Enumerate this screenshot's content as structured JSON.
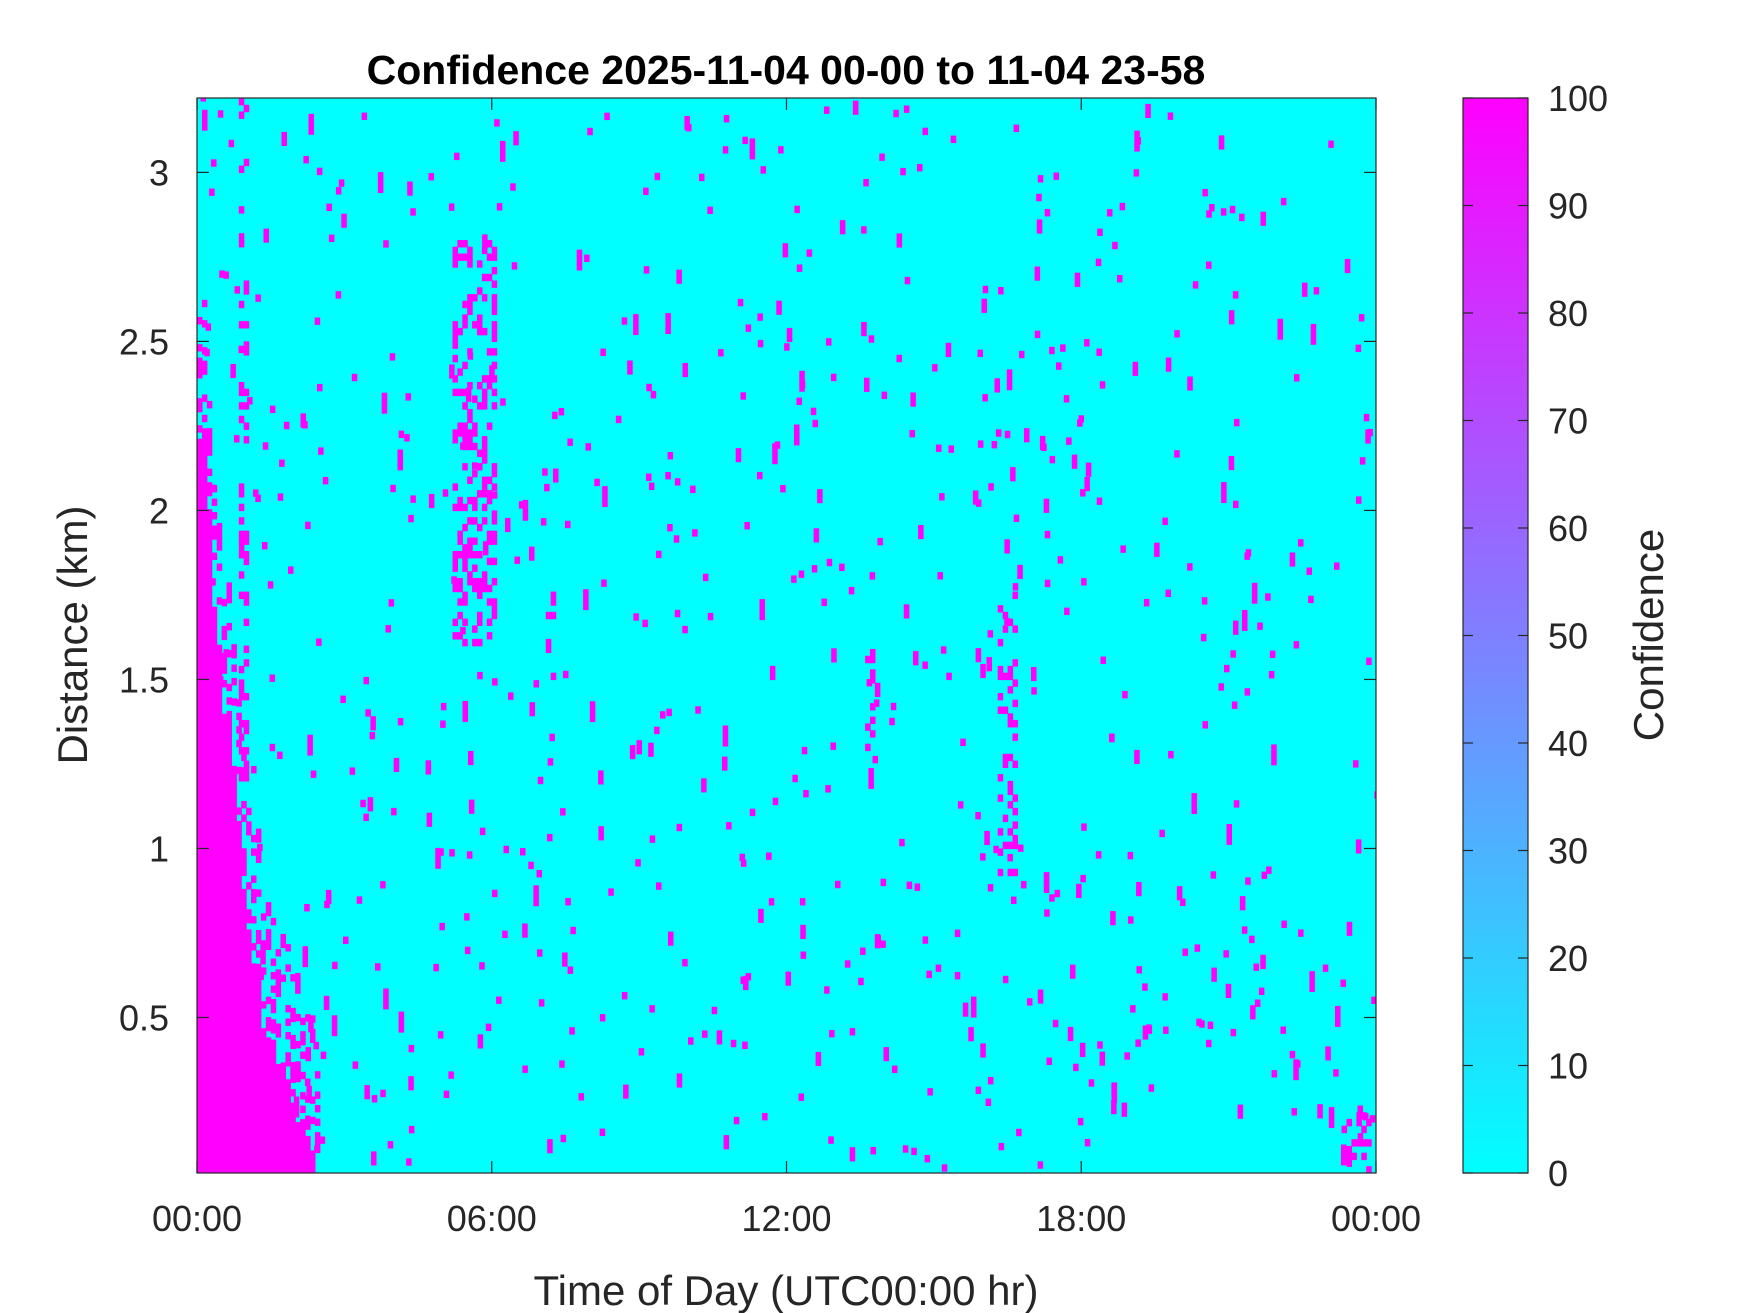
{
  "chart_data": {
    "type": "heatmap",
    "title": "Confidence 2025-11-04 00-00 to 11-04 23-58",
    "xlabel": "Time of Day (UTC00:00 hr)",
    "ylabel": "Distance (km)",
    "xlim_hours": [
      0,
      24
    ],
    "ylim_km": [
      0.04,
      3.22
    ],
    "xticks": [
      {
        "value": 0,
        "label": "00:00"
      },
      {
        "value": 6,
        "label": "06:00"
      },
      {
        "value": 12,
        "label": "12:00"
      },
      {
        "value": 18,
        "label": "18:00"
      },
      {
        "value": 24,
        "label": "00:00"
      }
    ],
    "yticks": [
      {
        "value": 0.5,
        "label": "0.5"
      },
      {
        "value": 1,
        "label": "1"
      },
      {
        "value": 1.5,
        "label": "1.5"
      },
      {
        "value": 2,
        "label": "2"
      },
      {
        "value": 2.5,
        "label": "2.5"
      },
      {
        "value": 3,
        "label": "3"
      }
    ],
    "colorbar": {
      "label": "Confidence",
      "range": [
        0,
        100
      ],
      "ticks": [
        "0",
        "10",
        "20",
        "30",
        "40",
        "50",
        "60",
        "70",
        "80",
        "90",
        "100"
      ],
      "colormap": "cool",
      "color_low": "#00ffff",
      "color_high": "#ff00ff"
    },
    "background_value": 0,
    "grid": false,
    "high_confidence_regions": [
      {
        "description": "dense near-ground return, boundary height vs time",
        "value": 100,
        "boundary": [
          [
            0.0,
            2.2
          ],
          [
            0.2,
            2.2
          ],
          [
            0.3,
            1.8
          ],
          [
            0.5,
            1.5
          ],
          [
            0.7,
            1.3
          ],
          [
            0.9,
            1.0
          ],
          [
            1.1,
            0.75
          ],
          [
            1.3,
            0.55
          ],
          [
            1.5,
            0.45
          ],
          [
            1.7,
            0.35
          ],
          [
            1.9,
            0.3
          ],
          [
            2.1,
            0.2
          ],
          [
            2.3,
            0.12
          ],
          [
            2.45,
            0.04
          ]
        ]
      },
      {
        "description": "column near 01:00",
        "value": 100,
        "x": [
          0.85,
          1.05
        ],
        "y": [
          1.2,
          3.22
        ]
      },
      {
        "description": "streaks near 05:00-06:00",
        "value": 100,
        "x": [
          5.2,
          6.0
        ],
        "y": [
          1.6,
          2.8
        ]
      },
      {
        "description": "streak near 07:15",
        "value": 100,
        "x": [
          7.1,
          7.25
        ],
        "y": [
          1.5,
          1.78
        ]
      },
      {
        "description": "streak near 13:50",
        "value": 100,
        "x": [
          13.6,
          13.8
        ],
        "y": [
          1.25,
          1.6
        ]
      },
      {
        "description": "streaks near 16:30",
        "value": 100,
        "x": [
          16.3,
          16.7
        ],
        "y": [
          0.9,
          1.75
        ]
      },
      {
        "description": "scattered pixels near 23:40",
        "value": 100,
        "x": [
          23.3,
          23.9
        ],
        "y": [
          0.04,
          0.2
        ]
      },
      {
        "description": "scattered isolated pixels across the whole field",
        "value": 100,
        "x": [
          0,
          24
        ],
        "y": [
          0.04,
          3.22
        ]
      }
    ]
  }
}
